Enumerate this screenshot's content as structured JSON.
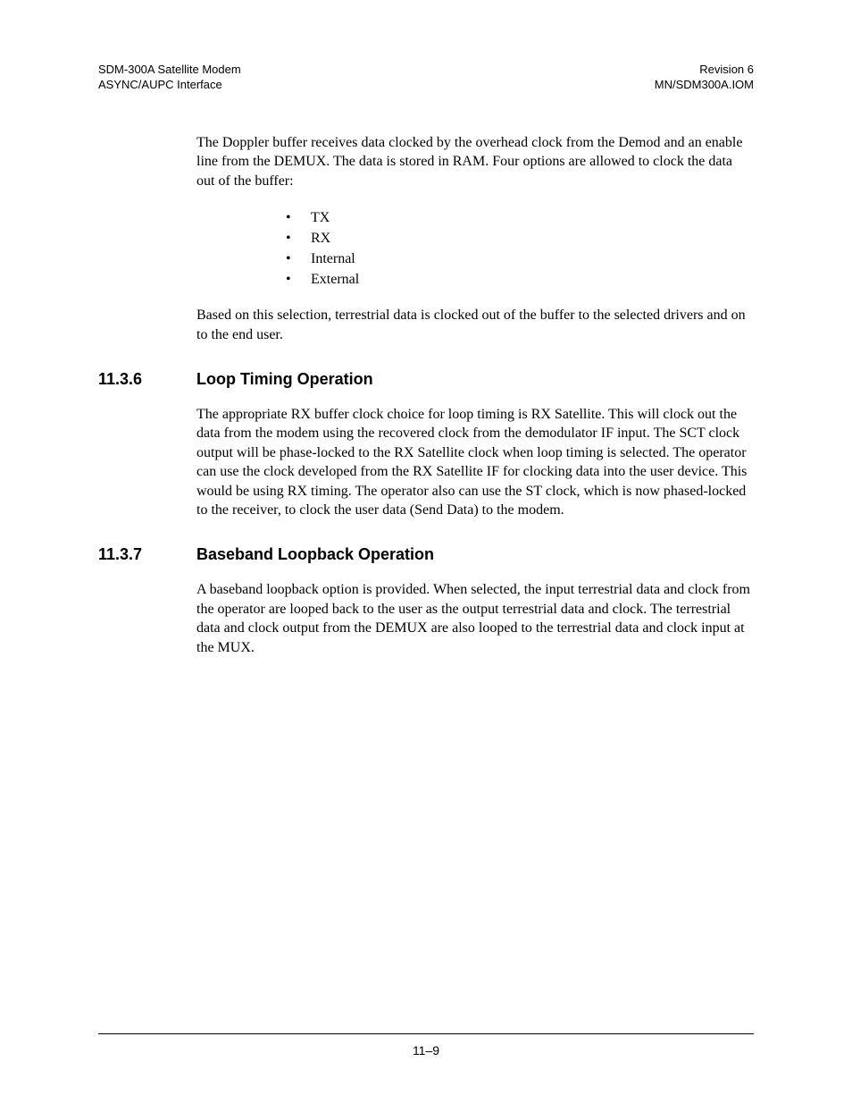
{
  "header": {
    "left_line1": "SDM-300A Satellite Modem",
    "left_line2": "ASYNC/AUPC Interface",
    "right_line1": "Revision 6",
    "right_line2": "MN/SDM300A.IOM"
  },
  "intro_paragraph": "The Doppler buffer receives data clocked by the overhead clock from the Demod and an enable line from the DEMUX. The data is stored in RAM. Four options are allowed to clock the data out of the buffer:",
  "clock_options": [
    "TX",
    "RX",
    "Internal",
    "External"
  ],
  "post_list_paragraph": "Based on this selection, terrestrial data is clocked out of the buffer to the selected drivers and on to the end user.",
  "sections": [
    {
      "number": "11.3.6",
      "title": "Loop Timing Operation",
      "paragraphs": [
        "The appropriate RX buffer clock choice for loop timing is RX Satellite. This will clock out the data from the modem using the recovered clock from the demodulator IF input. The SCT clock output will be phase-locked to the RX Satellite clock when loop timing is selected. The operator can use the clock developed from the RX Satellite IF for clocking data into the user device. This would be using RX timing. The operator also can use the ST clock, which is now phased-locked to the receiver, to clock the user data (Send Data) to the modem."
      ]
    },
    {
      "number": "11.3.7",
      "title": "Baseband Loopback Operation",
      "paragraphs": [
        "A baseband loopback option is provided. When selected, the input terrestrial data and clock from the operator are looped back to the user as the output terrestrial data and clock. The terrestrial data and clock output from the DEMUX are also looped to the terrestrial data and clock input at the MUX."
      ]
    }
  ],
  "footer": {
    "page_number": "11–9"
  }
}
